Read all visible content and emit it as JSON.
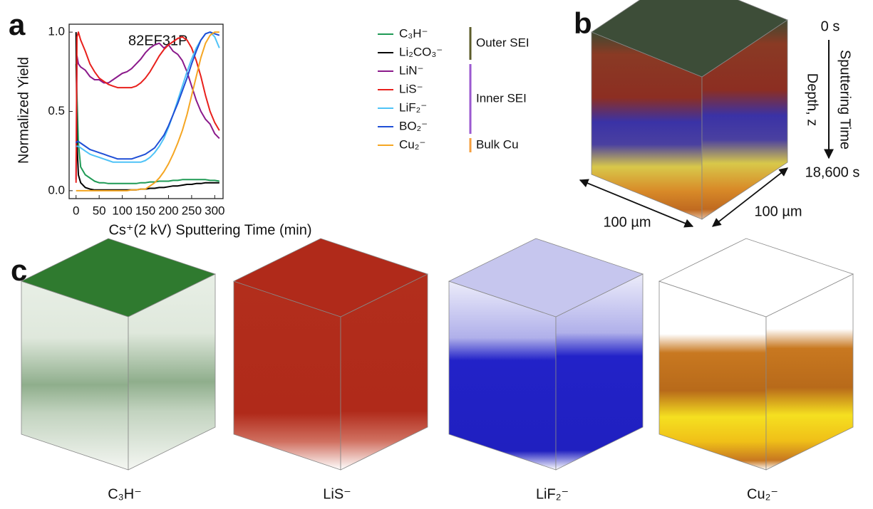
{
  "chart_data": {
    "type": "line",
    "xlabel": "Cs⁺(2 kV)  Sputtering Time (min)",
    "ylabel": "Normalized Yield",
    "annotation": "82EF31P",
    "x": [
      0,
      2,
      5,
      10,
      20,
      30,
      40,
      50,
      60,
      70,
      80,
      90,
      100,
      110,
      120,
      130,
      140,
      150,
      160,
      170,
      180,
      190,
      200,
      210,
      220,
      230,
      240,
      250,
      260,
      270,
      280,
      290,
      300,
      310
    ],
    "xlim": [
      -15,
      318
    ],
    "xticks": [
      0,
      50,
      100,
      150,
      200,
      250,
      300
    ],
    "ylim": [
      -0.05,
      1.05
    ],
    "yticks": [
      {
        "value": 0,
        "label": "0.0"
      },
      {
        "value": 0.5,
        "label": "0.5"
      },
      {
        "value": 1,
        "label": "1.0"
      }
    ],
    "series": [
      {
        "name": "C₃H⁻",
        "color": "#1f9a55",
        "values": [
          0.8,
          0.6,
          0.3,
          0.15,
          0.1,
          0.08,
          0.06,
          0.05,
          0.05,
          0.045,
          0.045,
          0.045,
          0.045,
          0.045,
          0.045,
          0.045,
          0.05,
          0.05,
          0.055,
          0.055,
          0.06,
          0.06,
          0.06,
          0.065,
          0.065,
          0.07,
          0.07,
          0.07,
          0.07,
          0.07,
          0.07,
          0.065,
          0.065,
          0.06
        ]
      },
      {
        "name": "Li₂CO₃⁻",
        "color": "#000000",
        "values": [
          1.0,
          0.3,
          0.1,
          0.05,
          0.02,
          0.01,
          0.005,
          0.005,
          0.005,
          0.005,
          0.005,
          0.005,
          0.005,
          0.005,
          0.005,
          0.005,
          0.01,
          0.01,
          0.015,
          0.015,
          0.02,
          0.02,
          0.025,
          0.03,
          0.03,
          0.035,
          0.04,
          0.04,
          0.045,
          0.045,
          0.05,
          0.05,
          0.05,
          0.05
        ]
      },
      {
        "name": "LiN⁻",
        "color": "#8b1a8b",
        "values": [
          0.07,
          0.85,
          0.8,
          0.78,
          0.76,
          0.72,
          0.7,
          0.7,
          0.68,
          0.68,
          0.7,
          0.72,
          0.74,
          0.75,
          0.77,
          0.8,
          0.83,
          0.87,
          0.9,
          0.92,
          0.93,
          0.9,
          0.92,
          0.88,
          0.86,
          0.82,
          0.75,
          0.66,
          0.57,
          0.5,
          0.45,
          0.42,
          0.36,
          0.33
        ]
      },
      {
        "name": "LiS⁻",
        "color": "#e8201c",
        "values": [
          0.05,
          0.97,
          1.0,
          0.95,
          0.88,
          0.8,
          0.75,
          0.71,
          0.69,
          0.67,
          0.66,
          0.65,
          0.65,
          0.65,
          0.65,
          0.66,
          0.68,
          0.71,
          0.75,
          0.8,
          0.85,
          0.89,
          0.92,
          0.94,
          0.96,
          0.97,
          0.95,
          0.9,
          0.82,
          0.72,
          0.6,
          0.5,
          0.43,
          0.38
        ]
      },
      {
        "name": "LiF₂⁻",
        "color": "#4fc3f7",
        "values": [
          0.28,
          0.28,
          0.28,
          0.27,
          0.25,
          0.23,
          0.22,
          0.21,
          0.2,
          0.19,
          0.18,
          0.18,
          0.18,
          0.18,
          0.18,
          0.18,
          0.18,
          0.19,
          0.21,
          0.24,
          0.28,
          0.33,
          0.4,
          0.48,
          0.57,
          0.66,
          0.75,
          0.83,
          0.9,
          0.95,
          0.99,
          1.0,
          0.97,
          0.9
        ]
      },
      {
        "name": "BO₂⁻",
        "color": "#1f4fd6",
        "values": [
          0.3,
          0.31,
          0.31,
          0.3,
          0.28,
          0.26,
          0.25,
          0.24,
          0.23,
          0.22,
          0.21,
          0.2,
          0.2,
          0.2,
          0.2,
          0.21,
          0.22,
          0.23,
          0.25,
          0.27,
          0.31,
          0.35,
          0.41,
          0.48,
          0.55,
          0.63,
          0.71,
          0.8,
          0.88,
          0.95,
          0.99,
          1.0,
          0.99,
          0.98
        ]
      },
      {
        "name": "Cu₂⁻",
        "color": "#f5a623",
        "values": [
          0,
          0,
          0,
          0,
          0,
          0,
          0,
          0,
          0,
          0,
          0,
          0,
          0,
          0,
          0.005,
          0.005,
          0.01,
          0.01,
          0.03,
          0.05,
          0.08,
          0.12,
          0.17,
          0.23,
          0.3,
          0.38,
          0.48,
          0.6,
          0.72,
          0.84,
          0.93,
          0.98,
          1.0,
          1.0
        ]
      }
    ],
    "legend_groups": [
      {
        "label": "Outer SEI",
        "color": "#5c5c2a"
      },
      {
        "label": "Inner SEI",
        "color": "#9b59d0"
      },
      {
        "label": "Bulk Cu",
        "color": "#f5a040"
      }
    ]
  },
  "figure": {
    "panel_labels": [
      "a",
      "b",
      "c"
    ],
    "b": {
      "start": "0 s",
      "end": "18,600 s",
      "axis_time": "Sputtering Time",
      "axis_depth": "Depth, z",
      "width_left": "100 µm",
      "width_right": "100 µm"
    },
    "c_captions": [
      "C₃H⁻",
      "LiS⁻",
      "LiF₂⁻",
      "Cu₂⁻"
    ]
  }
}
